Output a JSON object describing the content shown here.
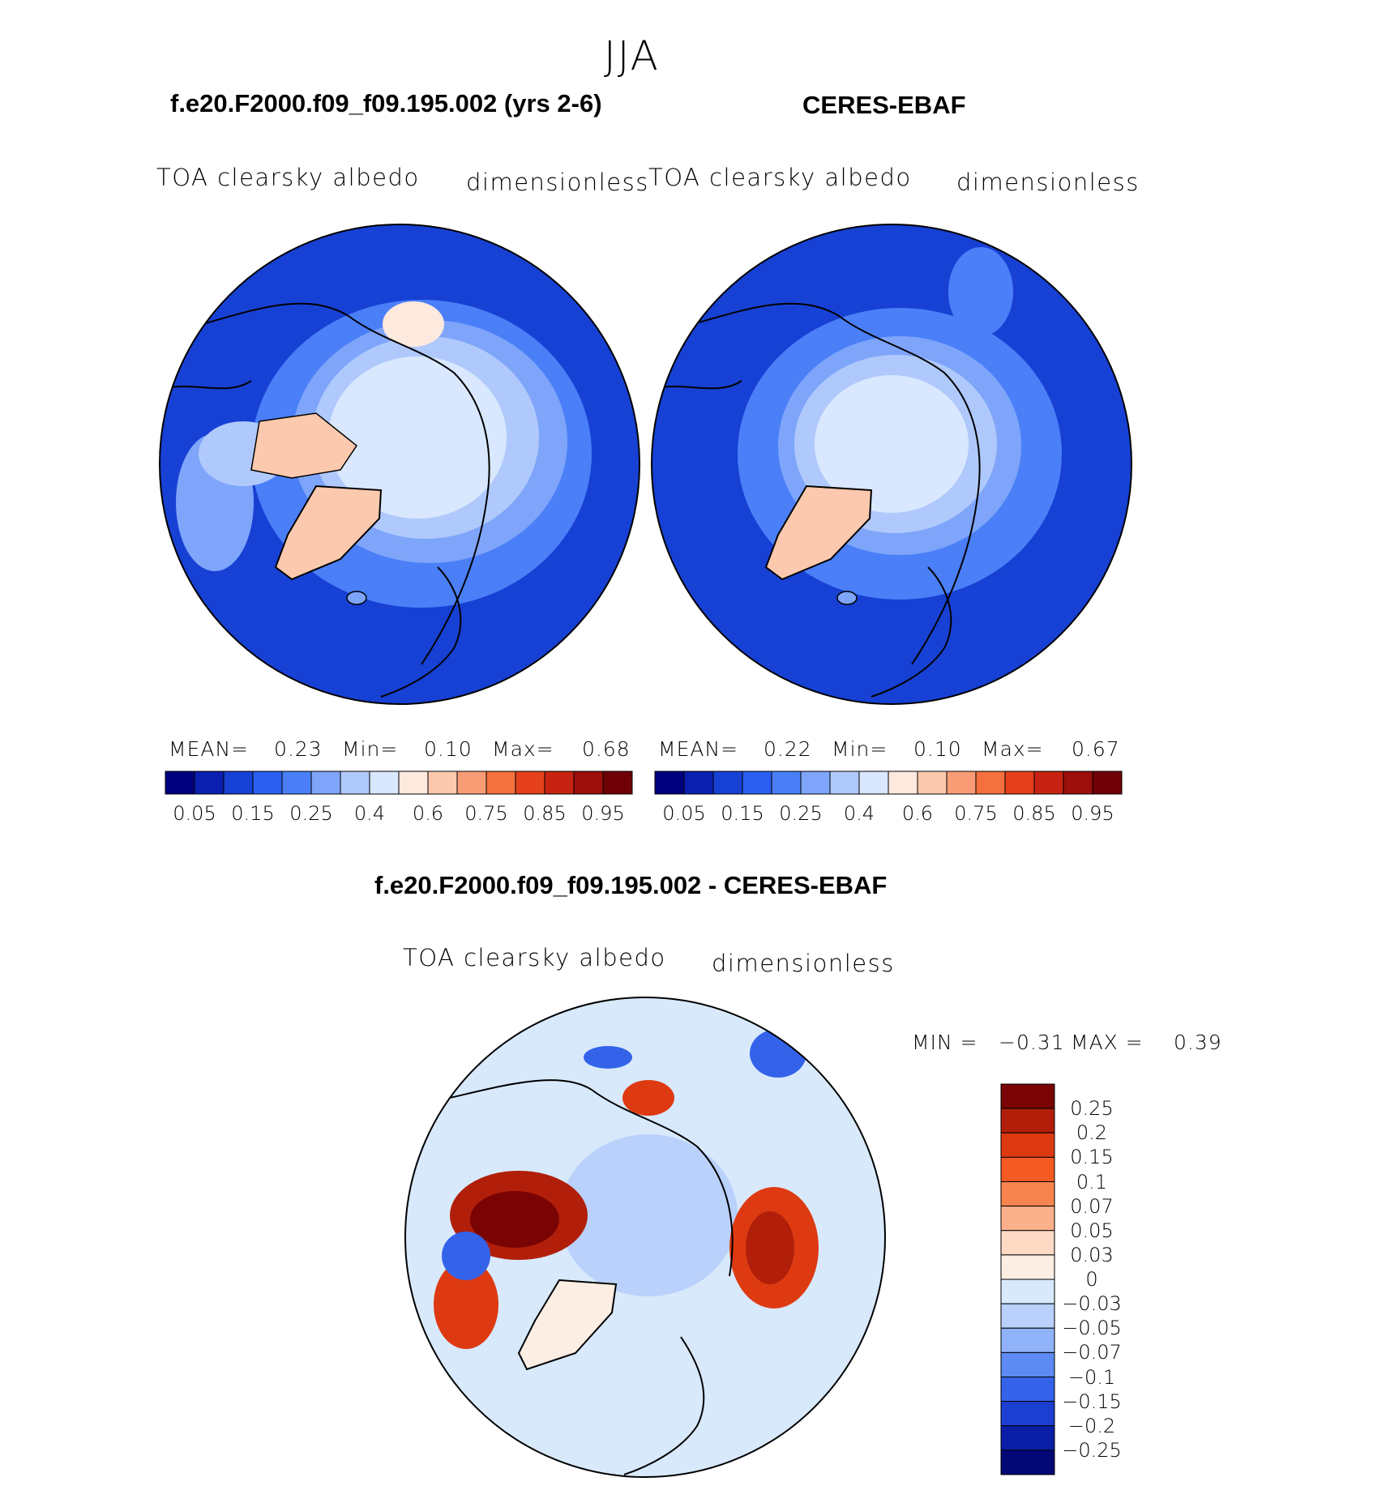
{
  "season": "JJA",
  "panels": [
    {
      "title": "f.e20.F2000.f09_f09.195.002 (yrs 2-6)",
      "variable": "TOA clearsky albedo",
      "units": "dimensionless",
      "mean_label": "MEAN=",
      "mean": "0.23",
      "min_label": "Min=",
      "min": "0.10",
      "max_label": "Max=",
      "max": "0.68"
    },
    {
      "title": "CERES-EBAF",
      "variable": "TOA clearsky albedo",
      "units": "dimensionless",
      "mean_label": "MEAN=",
      "mean": "0.22",
      "min_label": "Min=",
      "min": "0.10",
      "max_label": "Max=",
      "max": "0.67"
    }
  ],
  "diff": {
    "title": "f.e20.F2000.f09_f09.195.002 - CERES-EBAF",
    "variable": "TOA clearsky albedo",
    "units": "dimensionless",
    "min_label": "MIN =",
    "min": "−0.31",
    "max_label": "MAX =",
    "max": "0.39"
  },
  "chart_data": [
    {
      "type": "heatmap",
      "projection": "north-polar-stereographic",
      "title": "f.e20.F2000.f09_f09.195.002 (yrs 2-6)",
      "colorbar_ticks": [
        "0.05",
        "0.15",
        "0.25",
        "0.4",
        "0.6",
        "0.75",
        "0.85",
        "0.95"
      ],
      "colors": [
        "#00007f",
        "#0a1fb0",
        "#1741d4",
        "#2c5ff0",
        "#4a7ff8",
        "#7ea5fa",
        "#b0c9fc",
        "#d9e8fe",
        "#fde9dd",
        "#fcc9ae",
        "#f99c76",
        "#f4703f",
        "#e5411c",
        "#c82312",
        "#9d0f0a",
        "#6f0005"
      ]
    },
    {
      "type": "heatmap",
      "projection": "north-polar-stereographic",
      "title": "CERES-EBAF",
      "colorbar_ticks": [
        "0.05",
        "0.15",
        "0.25",
        "0.4",
        "0.6",
        "0.75",
        "0.85",
        "0.95"
      ],
      "colors": [
        "#00007f",
        "#0a1fb0",
        "#1741d4",
        "#2c5ff0",
        "#4a7ff8",
        "#7ea5fa",
        "#b0c9fc",
        "#d9e8fe",
        "#fde9dd",
        "#fcc9ae",
        "#f99c76",
        "#f4703f",
        "#e5411c",
        "#c82312",
        "#9d0f0a",
        "#6f0005"
      ]
    },
    {
      "type": "heatmap",
      "projection": "north-polar-stereographic",
      "title": "f.e20.F2000.f09_f09.195.002 - CERES-EBAF",
      "colorbar_ticks": [
        "0.25",
        "0.2",
        "0.15",
        "0.1",
        "0.07",
        "0.05",
        "0.03",
        "0",
        "−0.03",
        "−0.05",
        "−0.07",
        "−0.1",
        "−0.15",
        "−0.2",
        "−0.25"
      ],
      "colors": [
        "#7a0403",
        "#b11f0a",
        "#de3a12",
        "#f55a22",
        "#f7844e",
        "#fbb08c",
        "#fdd9c4",
        "#fdeee4",
        "#d8e9fc",
        "#b9d1fb",
        "#90b2f8",
        "#5d8af3",
        "#3463ea",
        "#1b3fd0",
        "#0b1ea8",
        "#020876"
      ]
    }
  ]
}
